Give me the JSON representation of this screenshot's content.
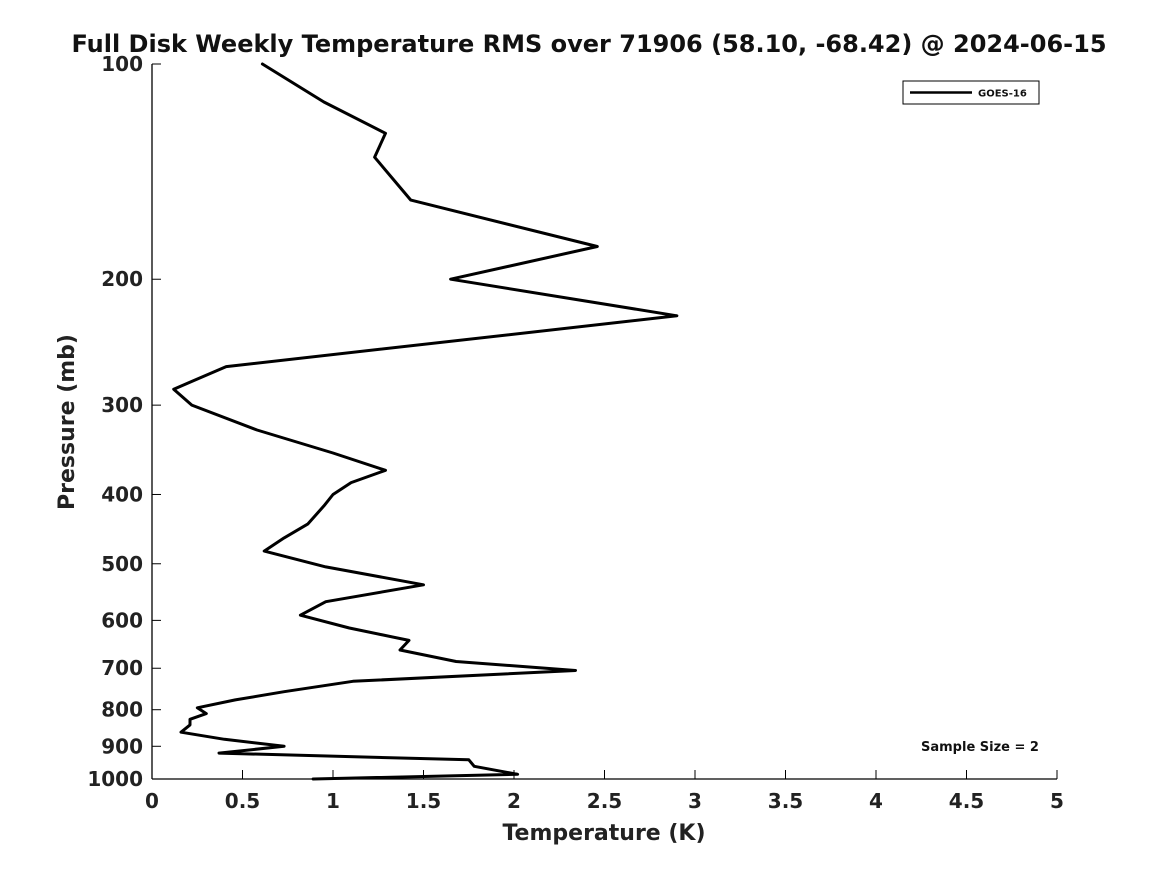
{
  "chart_data": {
    "type": "line",
    "title": "Full Disk Weekly Temperature RMS over 71906 (58.10, -68.42) @ 2024-06-15",
    "xlabel": "Temperature (K)",
    "ylabel": "Pressure (mb)",
    "xlim": [
      0,
      5
    ],
    "ylim": [
      100,
      1000
    ],
    "y_scale": "log",
    "y_reversed": true,
    "grid": false,
    "legend_position": "top-right",
    "x_ticks": [
      0,
      0.5,
      1,
      1.5,
      2,
      2.5,
      3,
      3.5,
      4,
      4.5,
      5
    ],
    "x_tick_labels": [
      "0",
      "0.5",
      "1",
      "1.5",
      "2",
      "2.5",
      "3",
      "3.5",
      "4",
      "4.5",
      "5"
    ],
    "y_ticks": [
      100,
      200,
      300,
      400,
      500,
      600,
      700,
      800,
      900,
      1000
    ],
    "y_tick_labels": [
      "100",
      "200",
      "300",
      "400",
      "500",
      "600",
      "700",
      "800",
      "900",
      "1000"
    ],
    "series": [
      {
        "name": "GOES-16",
        "color": "#000000",
        "x": [
          0.61,
          0.95,
          1.29,
          1.23,
          1.43,
          2.46,
          1.65,
          2.9,
          0.41,
          0.12,
          0.22,
          0.58,
          1.0,
          1.29,
          1.1,
          1.0,
          0.95,
          0.86,
          0.73,
          0.62,
          0.96,
          1.5,
          0.96,
          0.82,
          1.09,
          1.42,
          1.37,
          1.68,
          2.34,
          1.11,
          0.73,
          0.46,
          0.25,
          0.3,
          0.21,
          0.21,
          0.16,
          0.4,
          0.73,
          0.37,
          1.75,
          1.78,
          2.02,
          0.89
        ],
        "y": [
          100,
          113,
          125,
          135,
          155,
          180,
          200,
          225,
          265,
          285,
          300,
          325,
          350,
          370,
          385,
          400,
          415,
          440,
          460,
          480,
          505,
          535,
          565,
          590,
          615,
          640,
          660,
          685,
          705,
          730,
          755,
          775,
          795,
          810,
          825,
          840,
          860,
          880,
          900,
          920,
          940,
          960,
          985,
          1005
        ]
      }
    ],
    "annotations": [
      "Sample Size = 2"
    ]
  }
}
